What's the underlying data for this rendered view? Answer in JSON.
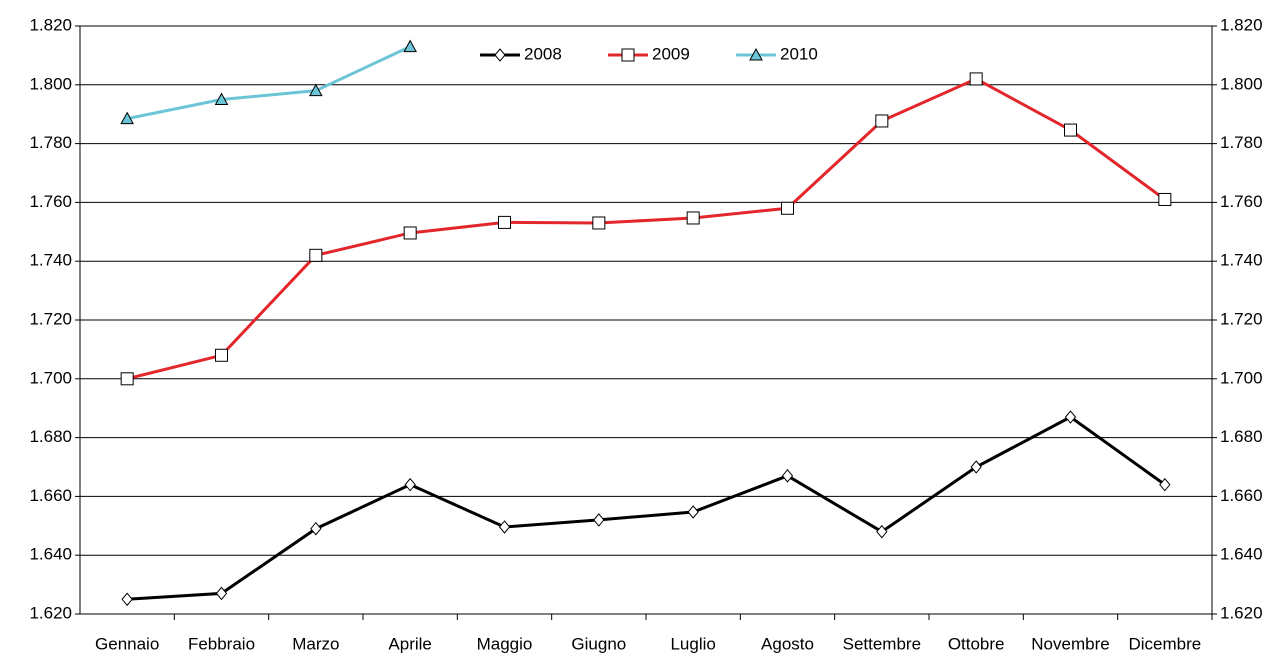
{
  "chart_data": {
    "type": "line",
    "categories": [
      "Gennaio",
      "Febbraio",
      "Marzo",
      "Aprile",
      "Maggio",
      "Giugno",
      "Luglio",
      "Agosto",
      "Settembre",
      "Ottobre",
      "Novembre",
      "Dicembre"
    ],
    "series": [
      {
        "name": "2008",
        "color": "#000000",
        "marker": "diamond",
        "values": [
          1625,
          1627,
          1649,
          1664,
          1649.6,
          1652,
          1654.7,
          1667,
          1648,
          1670,
          1687,
          1664
        ]
      },
      {
        "name": "2009",
        "color": "#e3262b",
        "marker": "square",
        "values": [
          1700,
          1708,
          1742,
          1749.6,
          1753.2,
          1753,
          1754.7,
          1758,
          1787.7,
          1802,
          1784.6,
          1761
        ]
      },
      {
        "name": "2010",
        "color": "#6cc5d6",
        "marker": "triangle",
        "values": [
          1788.5,
          1795,
          1798,
          1813,
          null,
          null,
          null,
          null,
          null,
          null,
          null,
          null
        ]
      }
    ],
    "ylim": [
      1620,
      1820
    ],
    "yticks": [
      {
        "value": 1620,
        "label": "1.620"
      },
      {
        "value": 1640,
        "label": "1.640"
      },
      {
        "value": 1660,
        "label": "1.660"
      },
      {
        "value": 1680,
        "label": "1.680"
      },
      {
        "value": 1700,
        "label": "1.700"
      },
      {
        "value": 1720,
        "label": "1.720"
      },
      {
        "value": 1740,
        "label": "1.740"
      },
      {
        "value": 1760,
        "label": "1.760"
      },
      {
        "value": 1780,
        "label": "1.780"
      },
      {
        "value": 1800,
        "label": "1.800"
      },
      {
        "value": 1820,
        "label": "1.820"
      }
    ],
    "grid": true,
    "legend": "top",
    "y2_mirror": true
  }
}
